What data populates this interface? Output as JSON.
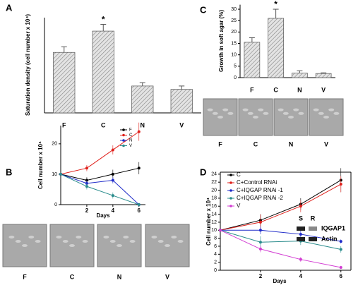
{
  "chart_data": [
    {
      "type": "bar",
      "panel_label": "A",
      "ylabel": "Saturation density (cell number x 10⁴)",
      "categories": [
        "F",
        "C",
        "N",
        "V"
      ],
      "values": [
        54,
        73,
        24,
        21
      ],
      "errors": [
        5,
        6,
        3,
        3
      ],
      "markers": [
        null,
        "*",
        null,
        null
      ],
      "color": "#c8c8c8",
      "hatch": true,
      "ylim": [
        0,
        85
      ]
    },
    {
      "type": "line",
      "panel_label": "B",
      "ylabel": "Cell number x 10⁴",
      "xlabel": "Days",
      "x": [
        0,
        2,
        4,
        6
      ],
      "xlim": [
        0,
        6.5
      ],
      "xticks": [
        2,
        4,
        6
      ],
      "ylim": [
        0,
        26
      ],
      "yticks": [
        0,
        10,
        20
      ],
      "series": [
        {
          "name": "F",
          "color": "#000000",
          "values": [
            10,
            8,
            10,
            12
          ],
          "errors": [
            0,
            1,
            1.5,
            2
          ]
        },
        {
          "name": "C",
          "color": "#e0201b",
          "values": [
            10,
            12,
            18,
            24
          ],
          "errors": [
            0,
            1,
            1.5,
            3
          ]
        },
        {
          "name": "N",
          "color": "#1f2bc9",
          "values": [
            10,
            7,
            8,
            0
          ],
          "errors": [
            0,
            1,
            1,
            0.5
          ]
        },
        {
          "name": "V",
          "color": "#2a8c8c",
          "values": [
            10,
            6,
            3,
            0
          ],
          "errors": [
            0,
            1,
            1,
            0.5
          ]
        }
      ],
      "legend": "upper right",
      "micrograph_labels": [
        "F",
        "C",
        "N",
        "V"
      ]
    },
    {
      "type": "bar",
      "panel_label": "C",
      "ylabel": "Growth in soft agar (%)",
      "categories": [
        "F",
        "C",
        "N",
        "V"
      ],
      "values": [
        15.5,
        26,
        2,
        1.8
      ],
      "errors": [
        2,
        4,
        1,
        0.3
      ],
      "markers": [
        null,
        "*",
        null,
        null
      ],
      "color": "#c8c8c8",
      "hatch": true,
      "ylim": [
        0,
        32
      ],
      "yticks": [
        0,
        5,
        10,
        15,
        20,
        25,
        30
      ],
      "micrograph_labels": [
        "F",
        "C",
        "N",
        "V"
      ]
    },
    {
      "type": "line",
      "panel_label": "D",
      "ylabel": "Cell number x 10⁴",
      "xlabel": "Days",
      "x": [
        0,
        2,
        4,
        6
      ],
      "xlim": [
        0,
        6.5
      ],
      "xticks": [
        2,
        4,
        6
      ],
      "ylim": [
        0,
        24.5
      ],
      "yticks": [
        0,
        2,
        4,
        6,
        8,
        10,
        12,
        14,
        16,
        18,
        20,
        22,
        24
      ],
      "series": [
        {
          "name": "C",
          "color": "#000000",
          "values": [
            10,
            12.5,
            16.5,
            22.5
          ],
          "errors": [
            0,
            1.5,
            1.5,
            3
          ]
        },
        {
          "name": "C+Control RNAi",
          "color": "#e0201b",
          "values": [
            10,
            12,
            16,
            21.5
          ],
          "errors": [
            0,
            2,
            1.5,
            2
          ]
        },
        {
          "name": "C+IQGAP RNAi -1",
          "color": "#1f2bc9",
          "values": [
            10,
            10,
            9,
            7.2
          ],
          "errors": [
            0,
            1,
            1,
            0.5
          ]
        },
        {
          "name": "C+IQGAP RNAi -2",
          "color": "#2a8c8c",
          "values": [
            10,
            7,
            7.3,
            5.2
          ],
          "errors": [
            0,
            1.5,
            1,
            0.8
          ]
        },
        {
          "name": "V",
          "color": "#d23cd2",
          "values": [
            10,
            5.3,
            2.7,
            0.7
          ],
          "errors": [
            0,
            0.8,
            0.6,
            0.4
          ]
        }
      ],
      "legend": "upper left",
      "inset": {
        "lanes": [
          "S",
          "R"
        ],
        "bands": [
          "IQGAP1",
          "Actin"
        ]
      }
    }
  ]
}
